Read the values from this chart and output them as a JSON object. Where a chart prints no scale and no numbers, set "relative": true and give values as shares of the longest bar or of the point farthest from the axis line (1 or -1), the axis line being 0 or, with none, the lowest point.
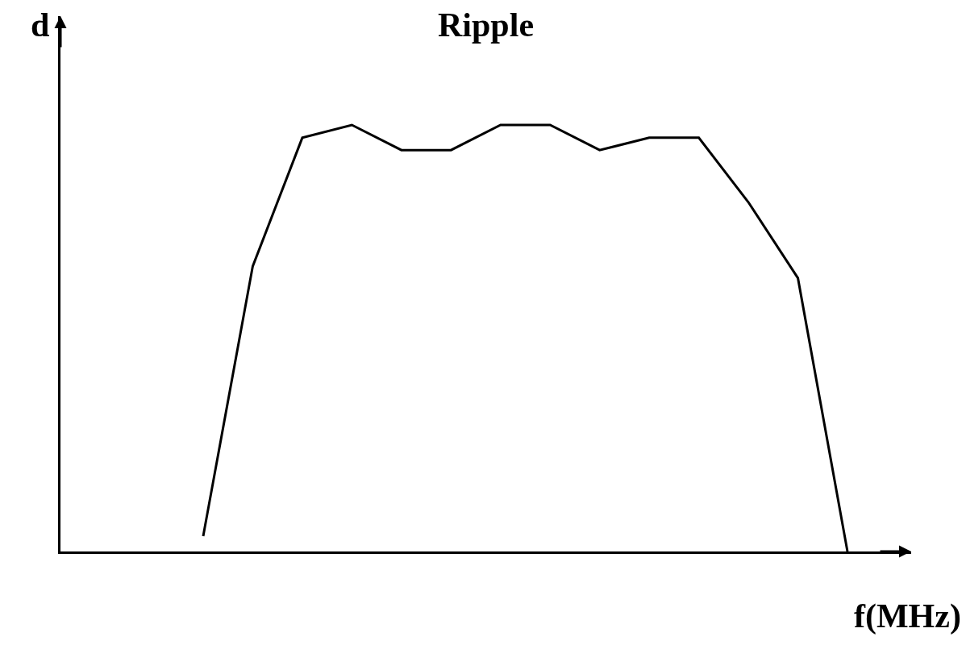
{
  "chart_data": {
    "type": "line",
    "title": "Ripple",
    "xlabel": "f(MHz)",
    "ylabel": "d",
    "relative": true,
    "categories": [
      null,
      null,
      null,
      null,
      null,
      null,
      null,
      null,
      null,
      null,
      null,
      null,
      null,
      null
    ],
    "series": [
      {
        "color": "#000000",
        "values": [
          0.036,
          0.669,
          0.97,
          1,
          0.941,
          0.941,
          1,
          1,
          0.941,
          0.97,
          0.97,
          0.819,
          0.641,
          0
        ]
      }
    ],
    "marker": "none",
    "line_style": "solid"
  }
}
